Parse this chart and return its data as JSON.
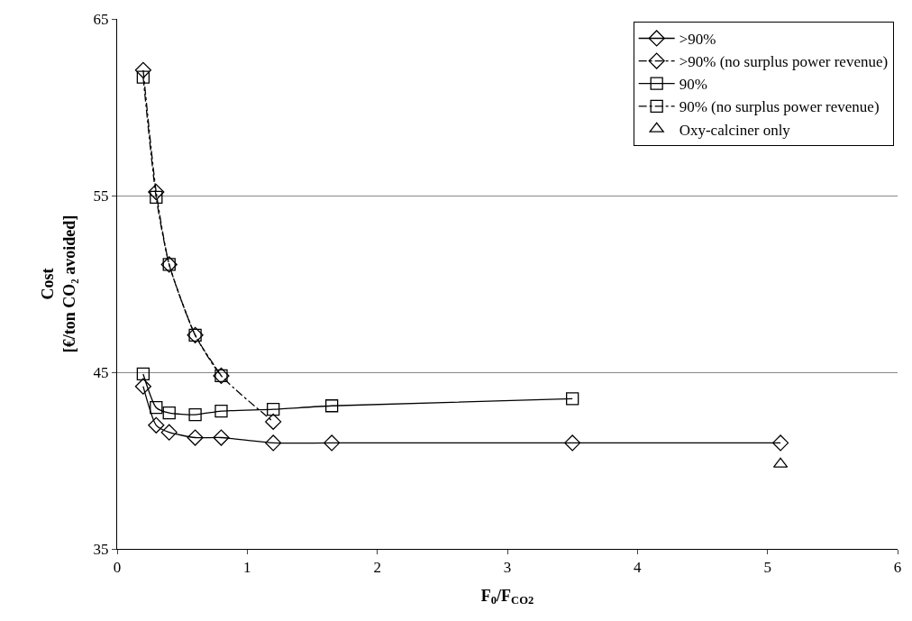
{
  "chart_data": {
    "type": "line",
    "xlabel": "F$_{0}$/F$_{CO2}$",
    "ylabel": "Cost\n[€/ton CO₂ avoided]",
    "xlim": [
      0,
      6
    ],
    "xticks": [
      0,
      1,
      2,
      3,
      4,
      5,
      6
    ],
    "ylim": [
      35,
      65
    ],
    "yticks": [
      35,
      45,
      55,
      65
    ],
    "grid": "y",
    "legend": "top right",
    "series": [
      {
        "name": ">90%",
        "color": "#000000",
        "marker": "diamond",
        "line_style": "solid",
        "x": [
          0.2,
          0.3,
          0.4,
          0.6,
          0.8,
          1.2,
          1.65,
          3.5,
          5.1
        ],
        "values": [
          44.2,
          42.0,
          41.6,
          41.3,
          41.3,
          41.0,
          41.0,
          41.0,
          41.0
        ]
      },
      {
        "name": ">90% (no surplus power revenue)",
        "color": "#000000",
        "marker": "diamond",
        "line_style": "dashed",
        "x": [
          0.2,
          0.3,
          0.4,
          0.6,
          0.8,
          1.2
        ],
        "values": [
          62.1,
          55.2,
          51.1,
          47.1,
          44.8,
          42.2
        ]
      },
      {
        "name": "90%",
        "color": "#000000",
        "marker": "square",
        "line_style": "solid",
        "x": [
          0.2,
          0.3,
          0.4,
          0.6,
          0.8,
          1.2,
          1.65,
          3.5
        ],
        "values": [
          44.9,
          43.0,
          42.7,
          42.6,
          42.8,
          42.9,
          43.1,
          43.5
        ]
      },
      {
        "name": "90% (no surplus power revenue)",
        "color": "#000000",
        "marker": "square",
        "line_style": "dashed",
        "x": [
          0.2,
          0.3,
          0.4,
          0.6,
          0.8
        ],
        "values": [
          61.7,
          54.9,
          51.1,
          47.1,
          44.8
        ]
      },
      {
        "name": "Oxy-calciner only",
        "color": "#000000",
        "type": "scatter",
        "marker": "triangle",
        "x": [
          5.1
        ],
        "values": [
          39.8
        ]
      }
    ]
  }
}
